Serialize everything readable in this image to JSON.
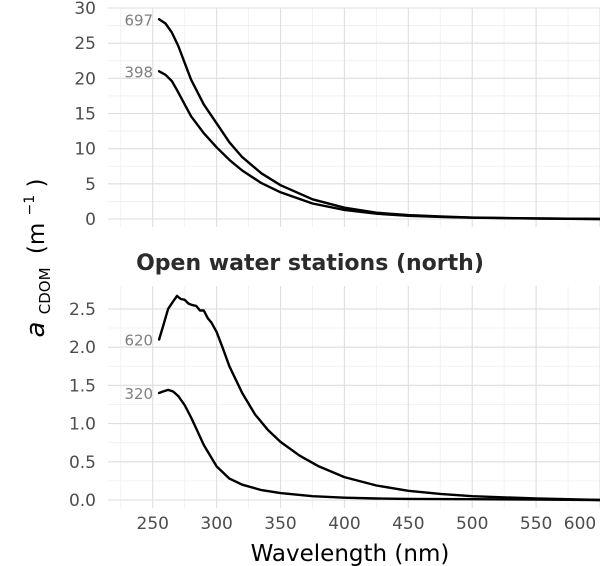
{
  "chart_data": {
    "type": "line",
    "x_axis": {
      "label": "Wavelength (nm)",
      "range": [
        215,
        600
      ],
      "ticks": [
        250,
        300,
        350,
        400,
        450,
        500,
        550,
        600
      ],
      "tick_labels": [
        "250",
        "300",
        "350",
        "400",
        "450",
        "500",
        "550",
        "600"
      ]
    },
    "y_axis_label": {
      "main": "a",
      "subscript": "CDOM",
      "unit_open": "(m",
      "unit_sup": "−1",
      "unit_close": ")"
    },
    "grid": true,
    "legend": "none",
    "panels": [
      {
        "title": "",
        "ylim": [
          0,
          30
        ],
        "y_ticks": [
          0,
          5,
          10,
          15,
          20,
          25,
          30
        ],
        "y_tick_labels": [
          "0",
          "5",
          "10",
          "15",
          "20",
          "25",
          "30"
        ],
        "series": [
          {
            "name": "697",
            "x": [
              255,
              260,
              265,
              270,
              275,
              280,
              290,
              300,
              310,
              320,
              335,
              350,
              375,
              400,
              425,
              450,
              475,
              500,
              550,
              600
            ],
            "y": [
              28.4,
              27.8,
              26.5,
              24.6,
              22.2,
              19.8,
              16.3,
              13.6,
              10.9,
              8.8,
              6.5,
              4.8,
              2.8,
              1.6,
              0.9,
              0.55,
              0.35,
              0.2,
              0.08,
              0.0
            ]
          },
          {
            "name": "398",
            "x": [
              255,
              260,
              265,
              270,
              275,
              280,
              290,
              300,
              310,
              320,
              335,
              350,
              375,
              400,
              425,
              450,
              475,
              500,
              550,
              600
            ],
            "y": [
              21.0,
              20.5,
              19.6,
              18.0,
              16.3,
              14.6,
              12.2,
              10.2,
              8.4,
              6.9,
              5.1,
              3.8,
              2.2,
              1.3,
              0.75,
              0.45,
              0.3,
              0.18,
              0.07,
              0.0
            ]
          }
        ]
      },
      {
        "title": "Open water stations (north)",
        "ylim": [
          0,
          2.8
        ],
        "y_ticks": [
          0,
          0.5,
          1.0,
          1.5,
          2.0,
          2.5
        ],
        "y_tick_labels": [
          "0.0",
          "0.5",
          "1.0",
          "1.5",
          "2.0",
          "2.5"
        ],
        "series": [
          {
            "name": "620",
            "x": [
              255,
              258,
              262,
              266,
              269,
              272,
              275,
              278,
              281,
              284,
              287,
              290,
              293,
              296,
              300,
              305,
              310,
              320,
              330,
              340,
              350,
              365,
              380,
              400,
              425,
              450,
              475,
              500,
              550,
              600
            ],
            "y": [
              2.1,
              2.27,
              2.5,
              2.6,
              2.67,
              2.63,
              2.62,
              2.57,
              2.55,
              2.54,
              2.48,
              2.48,
              2.38,
              2.32,
              2.2,
              1.98,
              1.75,
              1.4,
              1.12,
              0.92,
              0.76,
              0.58,
              0.44,
              0.3,
              0.19,
              0.12,
              0.08,
              0.05,
              0.02,
              0.0
            ]
          },
          {
            "name": "320",
            "x": [
              255,
              258,
              262,
              266,
              270,
              275,
              280,
              285,
              290,
              300,
              310,
              320,
              335,
              350,
              375,
              400,
              425,
              450,
              500,
              550,
              600
            ],
            "y": [
              1.4,
              1.42,
              1.44,
              1.42,
              1.36,
              1.24,
              1.08,
              0.9,
              0.72,
              0.44,
              0.28,
              0.2,
              0.13,
              0.09,
              0.05,
              0.03,
              0.02,
              0.015,
              0.01,
              0.005,
              0.0
            ]
          }
        ]
      }
    ]
  }
}
